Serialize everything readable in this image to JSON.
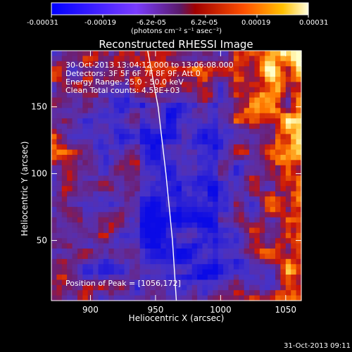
{
  "colorbar": {
    "tick_labels": [
      "-0.00031",
      "-0.00019",
      "-6.2e-05",
      "6.2e-05",
      "0.00019",
      "0.00031"
    ],
    "units": "(photons cm⁻² s⁻¹ asec⁻²)",
    "colors": [
      "#0000ff",
      "#7a3cff",
      "#6a2a9a",
      "#cc1a10",
      "#ff8a00",
      "#ffffa8"
    ]
  },
  "chart_data": {
    "type": "heatmap",
    "title": "Reconstructed RHESSI Image",
    "xlabel": "Heliocentric X (arcsec)",
    "ylabel": "Heliocentric Y (arcsec)",
    "xlim": [
      870,
      1062
    ],
    "ylim": [
      5,
      192
    ],
    "x_ticks": [
      900,
      950,
      1000,
      1050
    ],
    "y_ticks": [
      50,
      100,
      150
    ],
    "annotations": [
      "30-Oct-2013 13:04:12.000 to 13:06:08.000",
      "Detectors: 3F 5F 6F 7F 8F 9F, Att 0",
      "Energy Range: 25.0 - 50.0 keV",
      "Clean      Total counts: 4.53E+03"
    ],
    "peak_text": "Position of Peak = [1056,172]",
    "peak": {
      "x": 1056,
      "y": 172
    },
    "solar_limb": [
      {
        "x": 944,
        "y": 192
      },
      {
        "x": 952,
        "y": 150
      },
      {
        "x": 958,
        "y": 100
      },
      {
        "x": 963,
        "y": 50
      },
      {
        "x": 966,
        "y": 5
      }
    ],
    "intensity_range": [
      -0.00031,
      0.00031
    ]
  },
  "footer": {
    "date": "31-Oct-2013 09:11"
  }
}
